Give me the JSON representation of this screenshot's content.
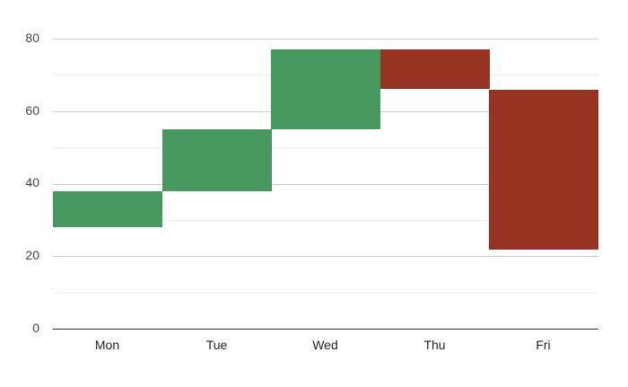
{
  "chart_data": {
    "type": "waterfall",
    "title": "",
    "xlabel": "",
    "ylabel": "",
    "ylim": [
      0,
      80
    ],
    "yticks": [
      0,
      20,
      40,
      60,
      80
    ],
    "minor_gridlines": [
      10,
      30,
      50,
      70
    ],
    "grid": true,
    "legend": "none",
    "categories": [
      "Mon",
      "Tue",
      "Wed",
      "Thu",
      "Fri"
    ],
    "series": [
      {
        "name": "start",
        "values": [
          28,
          38,
          55,
          77,
          66
        ]
      },
      {
        "name": "end",
        "values": [
          38,
          55,
          77,
          66,
          22
        ]
      }
    ],
    "colors": {
      "increase": "#48995f",
      "decrease": "#973322"
    }
  },
  "axis": {
    "y_labels": [
      "80",
      "60",
      "40",
      "20",
      "0"
    ],
    "x_labels": [
      "Mon",
      "Tue",
      "Wed",
      "Thu",
      "Fri"
    ]
  }
}
